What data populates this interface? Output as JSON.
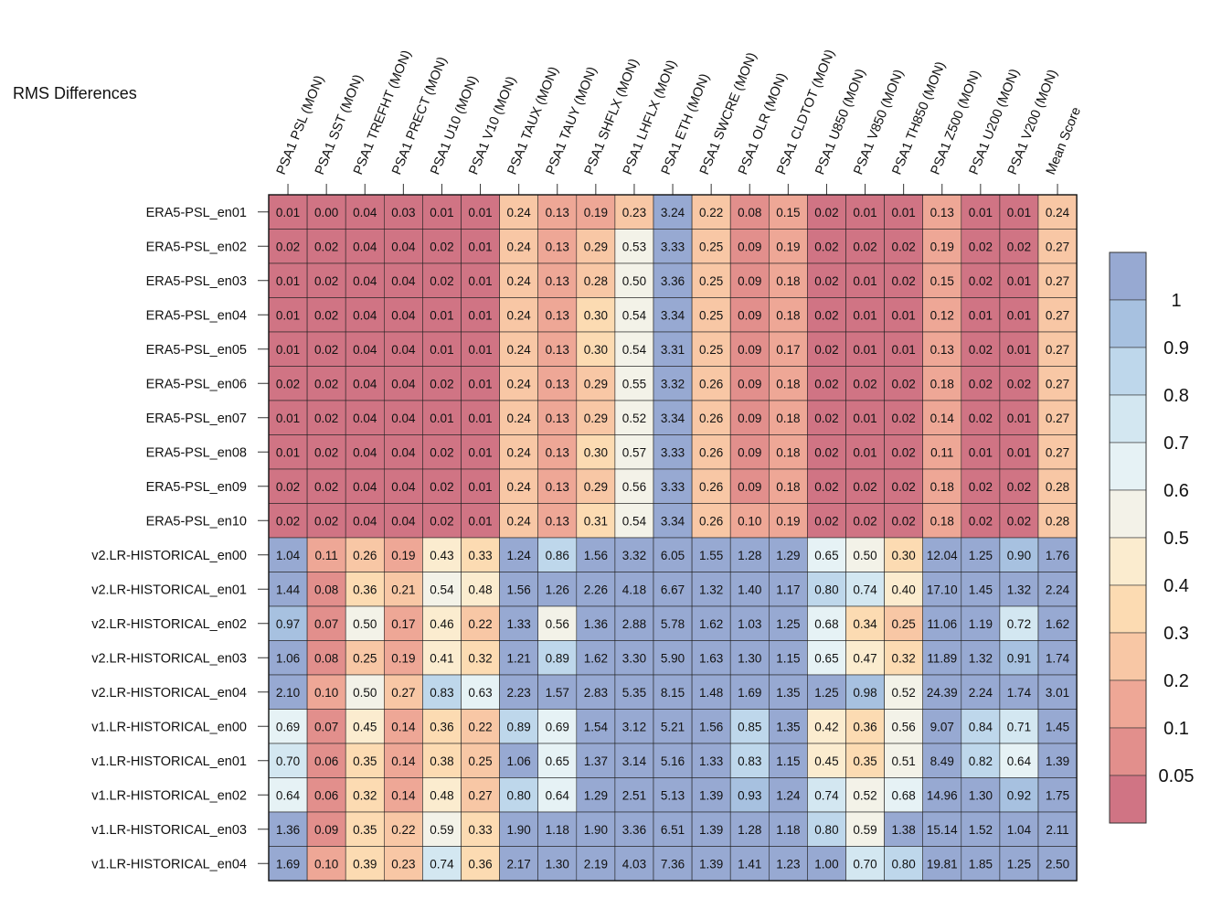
{
  "chart_data": {
    "type": "heatmap",
    "title": "RMS Differences",
    "columns": [
      "PSA1 PSL (MON)",
      "PSA1 SST (MON)",
      "PSA1 TREFHT (MON)",
      "PSA1 PRECT (MON)",
      "PSA1 U10 (MON)",
      "PSA1 V10 (MON)",
      "PSA1 TAUX (MON)",
      "PSA1 TAUY (MON)",
      "PSA1 SHFLX (MON)",
      "PSA1 LHFLX (MON)",
      "PSA1 ETH (MON)",
      "PSA1 SWCRE (MON)",
      "PSA1 OLR (MON)",
      "PSA1 CLDTOT (MON)",
      "PSA1 U850 (MON)",
      "PSA1 V850 (MON)",
      "PSA1 TH850 (MON)",
      "PSA1 Z500 (MON)",
      "PSA1 U200 (MON)",
      "PSA1 V200 (MON)",
      "Mean Score"
    ],
    "rows": [
      "ERA5-PSL_en01",
      "ERA5-PSL_en02",
      "ERA5-PSL_en03",
      "ERA5-PSL_en04",
      "ERA5-PSL_en05",
      "ERA5-PSL_en06",
      "ERA5-PSL_en07",
      "ERA5-PSL_en08",
      "ERA5-PSL_en09",
      "ERA5-PSL_en10",
      "v2.LR-HISTORICAL_en00",
      "v2.LR-HISTORICAL_en01",
      "v2.LR-HISTORICAL_en02",
      "v2.LR-HISTORICAL_en03",
      "v2.LR-HISTORICAL_en04",
      "v1.LR-HISTORICAL_en00",
      "v1.LR-HISTORICAL_en01",
      "v1.LR-HISTORICAL_en02",
      "v1.LR-HISTORICAL_en03",
      "v1.LR-HISTORICAL_en04"
    ],
    "values": [
      [
        "0.01",
        "0.00",
        "0.04",
        "0.03",
        "0.01",
        "0.01",
        "0.24",
        "0.13",
        "0.19",
        "0.23",
        "3.24",
        "0.22",
        "0.08",
        "0.15",
        "0.02",
        "0.01",
        "0.01",
        "0.13",
        "0.01",
        "0.01",
        "0.24"
      ],
      [
        "0.02",
        "0.02",
        "0.04",
        "0.04",
        "0.02",
        "0.01",
        "0.24",
        "0.13",
        "0.29",
        "0.53",
        "3.33",
        "0.25",
        "0.09",
        "0.19",
        "0.02",
        "0.02",
        "0.02",
        "0.19",
        "0.02",
        "0.02",
        "0.27"
      ],
      [
        "0.01",
        "0.02",
        "0.04",
        "0.04",
        "0.02",
        "0.01",
        "0.24",
        "0.13",
        "0.28",
        "0.50",
        "3.36",
        "0.25",
        "0.09",
        "0.18",
        "0.02",
        "0.01",
        "0.02",
        "0.15",
        "0.02",
        "0.01",
        "0.27"
      ],
      [
        "0.01",
        "0.02",
        "0.04",
        "0.04",
        "0.01",
        "0.01",
        "0.24",
        "0.13",
        "0.30",
        "0.54",
        "3.34",
        "0.25",
        "0.09",
        "0.18",
        "0.02",
        "0.01",
        "0.01",
        "0.12",
        "0.01",
        "0.01",
        "0.27"
      ],
      [
        "0.01",
        "0.02",
        "0.04",
        "0.04",
        "0.01",
        "0.01",
        "0.24",
        "0.13",
        "0.30",
        "0.54",
        "3.31",
        "0.25",
        "0.09",
        "0.17",
        "0.02",
        "0.01",
        "0.01",
        "0.13",
        "0.02",
        "0.01",
        "0.27"
      ],
      [
        "0.02",
        "0.02",
        "0.04",
        "0.04",
        "0.02",
        "0.01",
        "0.24",
        "0.13",
        "0.29",
        "0.55",
        "3.32",
        "0.26",
        "0.09",
        "0.18",
        "0.02",
        "0.02",
        "0.02",
        "0.18",
        "0.02",
        "0.02",
        "0.27"
      ],
      [
        "0.01",
        "0.02",
        "0.04",
        "0.04",
        "0.01",
        "0.01",
        "0.24",
        "0.13",
        "0.29",
        "0.52",
        "3.34",
        "0.26",
        "0.09",
        "0.18",
        "0.02",
        "0.01",
        "0.02",
        "0.14",
        "0.02",
        "0.01",
        "0.27"
      ],
      [
        "0.01",
        "0.02",
        "0.04",
        "0.04",
        "0.02",
        "0.01",
        "0.24",
        "0.13",
        "0.30",
        "0.57",
        "3.33",
        "0.26",
        "0.09",
        "0.18",
        "0.02",
        "0.01",
        "0.02",
        "0.11",
        "0.01",
        "0.01",
        "0.27"
      ],
      [
        "0.02",
        "0.02",
        "0.04",
        "0.04",
        "0.02",
        "0.01",
        "0.24",
        "0.13",
        "0.29",
        "0.56",
        "3.33",
        "0.26",
        "0.09",
        "0.18",
        "0.02",
        "0.02",
        "0.02",
        "0.18",
        "0.02",
        "0.02",
        "0.28"
      ],
      [
        "0.02",
        "0.02",
        "0.04",
        "0.04",
        "0.02",
        "0.01",
        "0.24",
        "0.13",
        "0.31",
        "0.54",
        "3.34",
        "0.26",
        "0.10",
        "0.19",
        "0.02",
        "0.02",
        "0.02",
        "0.18",
        "0.02",
        "0.02",
        "0.28"
      ],
      [
        "1.04",
        "0.11",
        "0.26",
        "0.19",
        "0.43",
        "0.33",
        "1.24",
        "0.86",
        "1.56",
        "3.32",
        "6.05",
        "1.55",
        "1.28",
        "1.29",
        "0.65",
        "0.50",
        "0.30",
        "12.04",
        "1.25",
        "0.90",
        "1.76"
      ],
      [
        "1.44",
        "0.08",
        "0.36",
        "0.21",
        "0.54",
        "0.48",
        "1.56",
        "1.26",
        "2.26",
        "4.18",
        "6.67",
        "1.32",
        "1.40",
        "1.17",
        "0.80",
        "0.74",
        "0.40",
        "17.10",
        "1.45",
        "1.32",
        "2.24"
      ],
      [
        "0.97",
        "0.07",
        "0.50",
        "0.17",
        "0.46",
        "0.22",
        "1.33",
        "0.56",
        "1.36",
        "2.88",
        "5.78",
        "1.62",
        "1.03",
        "1.25",
        "0.68",
        "0.34",
        "0.25",
        "11.06",
        "1.19",
        "0.72",
        "1.62"
      ],
      [
        "1.06",
        "0.08",
        "0.25",
        "0.19",
        "0.41",
        "0.32",
        "1.21",
        "0.89",
        "1.62",
        "3.30",
        "5.90",
        "1.63",
        "1.30",
        "1.15",
        "0.65",
        "0.47",
        "0.32",
        "11.89",
        "1.32",
        "0.91",
        "1.74"
      ],
      [
        "2.10",
        "0.10",
        "0.50",
        "0.27",
        "0.83",
        "0.63",
        "2.23",
        "1.57",
        "2.83",
        "5.35",
        "8.15",
        "1.48",
        "1.69",
        "1.35",
        "1.25",
        "0.98",
        "0.52",
        "24.39",
        "2.24",
        "1.74",
        "3.01"
      ],
      [
        "0.69",
        "0.07",
        "0.45",
        "0.14",
        "0.36",
        "0.22",
        "0.89",
        "0.69",
        "1.54",
        "3.12",
        "5.21",
        "1.56",
        "0.85",
        "1.35",
        "0.42",
        "0.36",
        "0.56",
        "9.07",
        "0.84",
        "0.71",
        "1.45"
      ],
      [
        "0.70",
        "0.06",
        "0.35",
        "0.14",
        "0.38",
        "0.25",
        "1.06",
        "0.65",
        "1.37",
        "3.14",
        "5.16",
        "1.33",
        "0.83",
        "1.15",
        "0.45",
        "0.35",
        "0.51",
        "8.49",
        "0.82",
        "0.64",
        "1.39"
      ],
      [
        "0.64",
        "0.06",
        "0.32",
        "0.14",
        "0.48",
        "0.27",
        "0.80",
        "0.64",
        "1.29",
        "2.51",
        "5.13",
        "1.39",
        "0.93",
        "1.24",
        "0.74",
        "0.52",
        "0.68",
        "14.96",
        "1.30",
        "0.92",
        "1.75"
      ],
      [
        "1.36",
        "0.09",
        "0.35",
        "0.22",
        "0.59",
        "0.33",
        "1.90",
        "1.18",
        "1.90",
        "3.36",
        "6.51",
        "1.39",
        "1.28",
        "1.18",
        "0.80",
        "0.59",
        "1.38",
        "15.14",
        "1.52",
        "1.04",
        "2.11"
      ],
      [
        "1.69",
        "0.10",
        "0.39",
        "0.23",
        "0.74",
        "0.36",
        "2.17",
        "1.30",
        "2.19",
        "4.03",
        "7.36",
        "1.39",
        "1.41",
        "1.23",
        "1.00",
        "0.70",
        "0.80",
        "19.81",
        "1.85",
        "1.25",
        "2.50"
      ]
    ],
    "colorbar": {
      "labels": [
        "1",
        "0.9",
        "0.8",
        "0.7",
        "0.6",
        "0.5",
        "0.4",
        "0.3",
        "0.2",
        "0.1",
        "0.05"
      ],
      "bins": [
        {
          "min": 1.0,
          "color": "#97a9d2"
        },
        {
          "min": 0.9,
          "color": "#a7c1e0"
        },
        {
          "min": 0.8,
          "color": "#bed7eb"
        },
        {
          "min": 0.7,
          "color": "#d3e7f1"
        },
        {
          "min": 0.6,
          "color": "#e6f2f5"
        },
        {
          "min": 0.5,
          "color": "#f3f2e8"
        },
        {
          "min": 0.4,
          "color": "#fbeccf"
        },
        {
          "min": 0.3,
          "color": "#fcdbb2"
        },
        {
          "min": 0.2,
          "color": "#f8c7a5"
        },
        {
          "min": 0.1,
          "color": "#eea796"
        },
        {
          "min": 0.05,
          "color": "#e28f8c"
        },
        {
          "min": -1,
          "color": "#d07484"
        }
      ]
    }
  }
}
